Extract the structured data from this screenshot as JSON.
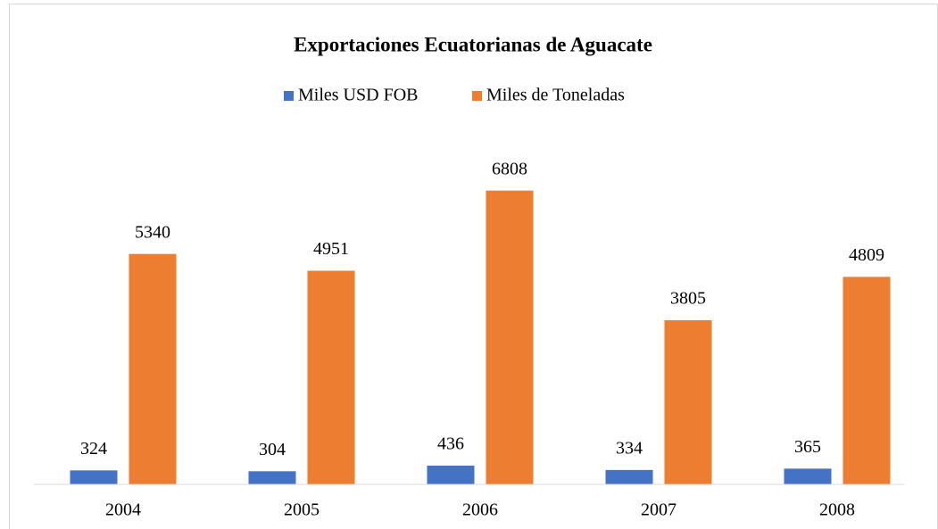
{
  "chart_data": {
    "type": "bar",
    "title": "Exportaciones Ecuatorianas de Aguacate",
    "categories": [
      "2004",
      "2005",
      "2006",
      "2007",
      "2008"
    ],
    "series": [
      {
        "name": "Miles USD FOB",
        "color": "#4472c4",
        "values": [
          324,
          304,
          436,
          334,
          365
        ]
      },
      {
        "name": "Miles de Toneladas",
        "color": "#ed7d31",
        "values": [
          5340,
          4951,
          6808,
          3805,
          4809
        ]
      }
    ],
    "ylim": [
      0,
      8000
    ],
    "legend": "top"
  }
}
